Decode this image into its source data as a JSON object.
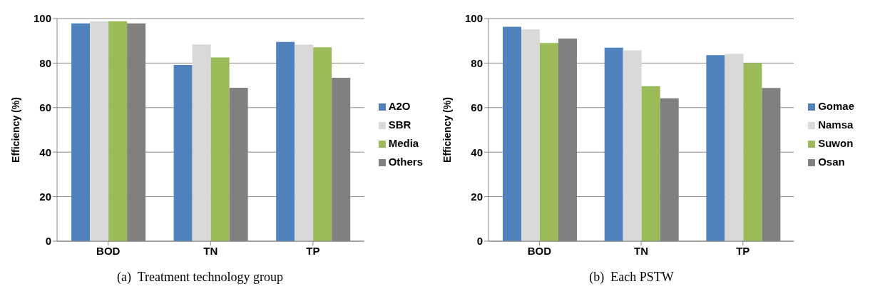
{
  "chart_data": [
    {
      "type": "bar",
      "title": "(a)  Treatment technology group",
      "ylabel": "Efficiency  (%)",
      "categories": [
        "BOD",
        "TN",
        "TP"
      ],
      "series": [
        {
          "name": "A2O",
          "color": "#4f81bd",
          "values": [
            97.8,
            79.2,
            89.5
          ]
        },
        {
          "name": "SBR",
          "color": "#d9d9d9",
          "values": [
            98.8,
            88.4,
            88.3
          ]
        },
        {
          "name": "Media",
          "color": "#9bbb59",
          "values": [
            98.8,
            82.5,
            87.1
          ]
        },
        {
          "name": "Others",
          "color": "#808080",
          "values": [
            97.8,
            68.9,
            73.4
          ]
        }
      ],
      "ylim": [
        0,
        100
      ],
      "yticks": [
        0,
        20,
        40,
        60,
        80,
        100
      ],
      "grid": "y",
      "legend": "right"
    },
    {
      "type": "bar",
      "title": "(b)  Each PSTW",
      "ylabel": "Efficiency  (%)",
      "categories": [
        "BOD",
        "TN",
        "TP"
      ],
      "series": [
        {
          "name": "Gomae",
          "color": "#4f81bd",
          "values": [
            96.3,
            86.9,
            83.6
          ]
        },
        {
          "name": "Namsa",
          "color": "#d9d9d9",
          "values": [
            95.1,
            85.7,
            84.1
          ]
        },
        {
          "name": "Suwon",
          "color": "#9bbb59",
          "values": [
            89.0,
            69.6,
            80.0
          ]
        },
        {
          "name": "Osan",
          "color": "#808080",
          "values": [
            91.0,
            64.2,
            68.8
          ]
        }
      ],
      "ylim": [
        0,
        100
      ],
      "yticks": [
        0,
        20,
        40,
        60,
        80,
        100
      ],
      "grid": "y",
      "legend": "right"
    }
  ]
}
